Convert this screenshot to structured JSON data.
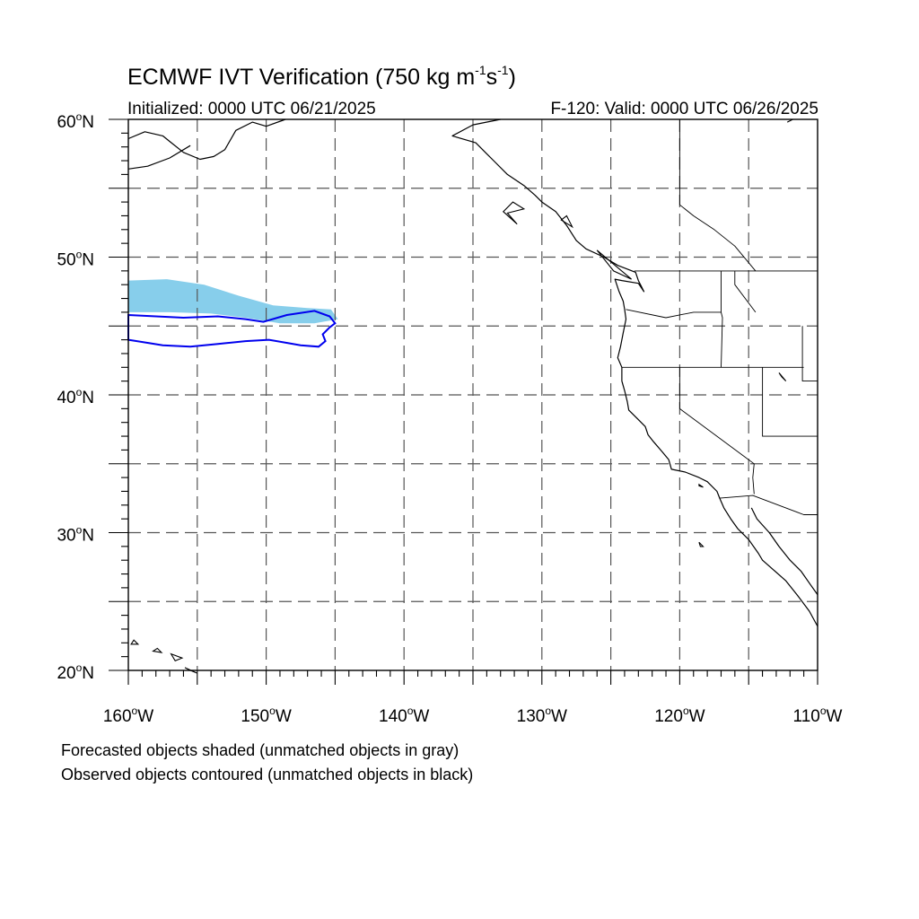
{
  "title": {
    "text": "ECMWF IVT Verification (750 kg m",
    "sup1": "-1",
    "mid": "s",
    "sup2": "-1",
    "close": ")"
  },
  "subtitle_left": "Initialized: 0000 UTC 06/21/2025",
  "subtitle_right": "F-120: Valid: 0000 UTC 06/26/2025",
  "footnotes": [
    "Forecasted objects shaded (unmatched objects in gray)",
    "Observed objects contoured (unmatched objects in black)"
  ],
  "map": {
    "lon_range": [
      -160,
      -110
    ],
    "lat_range": [
      20,
      60
    ],
    "grid_major_lon": [
      -155,
      -150,
      -145,
      -140,
      -135,
      -130,
      -125,
      -120,
      -115
    ],
    "grid_major_lat": [
      25,
      30,
      35,
      40,
      45,
      50,
      55
    ],
    "lon_labels": [
      {
        "lon": -160,
        "text": "160",
        "hemi": "W"
      },
      {
        "lon": -150,
        "text": "150",
        "hemi": "W"
      },
      {
        "lon": -140,
        "text": "140",
        "hemi": "W"
      },
      {
        "lon": -130,
        "text": "130",
        "hemi": "W"
      },
      {
        "lon": -120,
        "text": "120",
        "hemi": "W"
      },
      {
        "lon": -110,
        "text": "110",
        "hemi": "W"
      }
    ],
    "lat_labels": [
      {
        "lat": 60,
        "text": "60",
        "hemi": "N"
      },
      {
        "lat": 50,
        "text": "50",
        "hemi": "N"
      },
      {
        "lat": 40,
        "text": "40",
        "hemi": "N"
      },
      {
        "lat": 30,
        "text": "30",
        "hemi": "N"
      },
      {
        "lat": 20,
        "text": "20",
        "hemi": "N"
      }
    ],
    "colors": {
      "forecast_fill": "#87ceeb",
      "observed_contour": "#0000ee",
      "grid": "#555555",
      "coast": "#000000"
    },
    "forecast_object": [
      [
        -160,
        48.3
      ],
      [
        -157.2,
        48.4
      ],
      [
        -154.5,
        48.0
      ],
      [
        -152.0,
        47.2
      ],
      [
        -149.5,
        46.5
      ],
      [
        -147.0,
        46.3
      ],
      [
        -145.3,
        46.2
      ],
      [
        -144.8,
        45.5
      ],
      [
        -146.5,
        45.2
      ],
      [
        -149.0,
        45.2
      ],
      [
        -151.5,
        45.6
      ],
      [
        -154.0,
        45.9
      ],
      [
        -157.0,
        46.0
      ],
      [
        -160,
        46.0
      ]
    ],
    "observed_object": [
      [
        -160,
        45.8
      ],
      [
        -158.0,
        45.7
      ],
      [
        -156.0,
        45.6
      ],
      [
        -153.5,
        45.7
      ],
      [
        -151.5,
        45.5
      ],
      [
        -150.2,
        45.3
      ],
      [
        -148.5,
        45.8
      ],
      [
        -146.5,
        46.1
      ],
      [
        -145.4,
        45.7
      ],
      [
        -145.0,
        45.2
      ],
      [
        -145.4,
        44.9
      ],
      [
        -145.9,
        44.4
      ],
      [
        -145.7,
        43.9
      ],
      [
        -146.2,
        43.5
      ],
      [
        -147.5,
        43.6
      ],
      [
        -149.8,
        44.0
      ],
      [
        -151.5,
        43.9
      ],
      [
        -153.5,
        43.7
      ],
      [
        -155.5,
        43.5
      ],
      [
        -157.5,
        43.6
      ],
      [
        -160,
        44.0
      ]
    ],
    "coastline": [
      [
        -133.0,
        60.0
      ],
      [
        -135.0,
        59.6
      ],
      [
        -136.5,
        58.8
      ],
      [
        -134.8,
        58.3
      ],
      [
        -134.0,
        57.5
      ],
      [
        -133.5,
        57.0
      ],
      [
        -132.5,
        56.0
      ],
      [
        -131.3,
        55.2
      ],
      [
        -130.5,
        54.5
      ],
      [
        -130.0,
        54.0
      ],
      [
        -129.0,
        53.3
      ],
      [
        -128.2,
        52.3
      ],
      [
        -127.5,
        51.2
      ],
      [
        -126.8,
        50.6
      ],
      [
        -125.5,
        50.0
      ],
      [
        -124.5,
        49.4
      ],
      [
        -123.2,
        48.9
      ],
      [
        -123.0,
        48.3
      ],
      [
        -122.8,
        47.9
      ],
      [
        -122.6,
        47.5
      ],
      [
        -123.0,
        48.1
      ],
      [
        -124.2,
        48.3
      ],
      [
        -124.7,
        48.4
      ],
      [
        -124.4,
        47.5
      ],
      [
        -124.1,
        46.8
      ],
      [
        -124.0,
        46.2
      ],
      [
        -123.9,
        45.5
      ],
      [
        -124.1,
        44.5
      ],
      [
        -124.3,
        43.5
      ],
      [
        -124.5,
        42.7
      ],
      [
        -124.2,
        42.0
      ],
      [
        -124.2,
        41.0
      ],
      [
        -124.0,
        40.3
      ],
      [
        -123.8,
        39.5
      ],
      [
        -123.7,
        38.9
      ],
      [
        -123.0,
        38.2
      ],
      [
        -122.5,
        37.7
      ],
      [
        -122.3,
        37.1
      ],
      [
        -121.9,
        36.6
      ],
      [
        -121.3,
        35.9
      ],
      [
        -120.8,
        35.3
      ],
      [
        -120.6,
        34.6
      ],
      [
        -119.6,
        34.4
      ],
      [
        -118.6,
        34.0
      ],
      [
        -118.0,
        33.7
      ],
      [
        -117.3,
        33.0
      ],
      [
        -117.1,
        32.5
      ],
      [
        -116.8,
        31.8
      ],
      [
        -116.3,
        31.0
      ],
      [
        -115.8,
        30.3
      ],
      [
        -115.0,
        29.5
      ],
      [
        -114.3,
        28.5
      ],
      [
        -114.0,
        28.0
      ],
      [
        -113.2,
        27.3
      ],
      [
        -112.3,
        26.5
      ],
      [
        -111.5,
        25.5
      ],
      [
        -110.6,
        24.3
      ],
      [
        -110.0,
        23.2
      ]
    ],
    "gulf_coast": [
      [
        -114.8,
        31.8
      ],
      [
        -114.4,
        31.0
      ],
      [
        -113.5,
        30.0
      ],
      [
        -112.8,
        29.0
      ],
      [
        -112.0,
        28.0
      ],
      [
        -111.2,
        27.2
      ],
      [
        -110.5,
        26.2
      ],
      [
        -110.0,
        25.5
      ]
    ],
    "upper_coast": [
      [
        -112.2,
        59.8
      ],
      [
        -111.8,
        60.0
      ]
    ],
    "islands": [
      [
        [
          -155.9,
          20.2
        ],
        [
          -155.0,
          19.8
        ],
        [
          -155.5,
          20.0
        ],
        [
          -155.9,
          20.2
        ]
      ],
      [
        [
          -159.6,
          22.2
        ],
        [
          -159.3,
          21.9
        ],
        [
          -159.8,
          21.9
        ],
        [
          -159.6,
          22.2
        ]
      ],
      [
        [
          -157.9,
          21.6
        ],
        [
          -157.6,
          21.3
        ],
        [
          -158.2,
          21.4
        ],
        [
          -157.9,
          21.6
        ]
      ],
      [
        [
          -156.9,
          21.2
        ],
        [
          -156.1,
          20.9
        ],
        [
          -156.6,
          20.7
        ],
        [
          -156.9,
          21.2
        ]
      ],
      [
        [
          -128.2,
          53.0
        ],
        [
          -127.8,
          52.2
        ],
        [
          -128.6,
          52.7
        ],
        [
          -128.2,
          53.0
        ]
      ],
      [
        [
          -132.1,
          54.0
        ],
        [
          -131.3,
          53.5
        ],
        [
          -132.5,
          53.2
        ],
        [
          -131.8,
          52.4
        ],
        [
          -132.8,
          53.3
        ],
        [
          -132.1,
          54.0
        ]
      ],
      [
        [
          -126.0,
          50.5
        ],
        [
          -123.5,
          48.4
        ],
        [
          -124.8,
          49.0
        ],
        [
          -126.0,
          50.5
        ]
      ],
      [
        [
          -118.6,
          33.5
        ],
        [
          -118.3,
          33.3
        ],
        [
          -118.6,
          33.4
        ],
        [
          -118.6,
          33.5
        ]
      ],
      [
        [
          -118.6,
          29.3
        ],
        [
          -118.3,
          29.0
        ],
        [
          -118.5,
          29.0
        ],
        [
          -118.6,
          29.3
        ]
      ],
      [
        [
          -112.8,
          41.6
        ],
        [
          -112.3,
          41.0
        ],
        [
          -112.6,
          41.3
        ],
        [
          -112.8,
          41.6
        ]
      ]
    ],
    "alaska_coast": [
      [
        -160,
        58.6
      ],
      [
        -158.8,
        59.1
      ],
      [
        -157.5,
        58.8
      ],
      [
        -157.0,
        58.4
      ],
      [
        -156.0,
        57.6
      ],
      [
        -154.8,
        57.1
      ],
      [
        -153.8,
        57.3
      ],
      [
        -153.0,
        57.8
      ],
      [
        -152.2,
        59.2
      ],
      [
        -151.0,
        59.8
      ],
      [
        -150.0,
        59.5
      ],
      [
        -148.6,
        60.0
      ]
    ],
    "alaska_lower": [
      [
        -160,
        56.4
      ],
      [
        -158.6,
        56.6
      ],
      [
        -157.0,
        57.2
      ],
      [
        -155.5,
        58.1
      ]
    ],
    "state_lines": [
      [
        [
          -123.3,
          49.0
        ],
        [
          -110,
          49.0
        ]
      ],
      [
        [
          -124.2,
          42.0
        ],
        [
          -111,
          42.0
        ]
      ],
      [
        [
          -120.0,
          42.0
        ],
        [
          -120.0,
          39.0
        ],
        [
          -114.6,
          35.0
        ]
      ],
      [
        [
          -117.0,
          49.0
        ],
        [
          -117.0,
          46.0
        ],
        [
          -116.9,
          45.6
        ],
        [
          -117.0,
          42.0
        ]
      ],
      [
        [
          -123.9,
          46.2
        ],
        [
          -121.0,
          45.6
        ],
        [
          -119.0,
          46.0
        ],
        [
          -117.0,
          46.0
        ]
      ],
      [
        [
          -114.0,
          42.0
        ],
        [
          -114.0,
          37.0
        ],
        [
          -110,
          37.0
        ]
      ],
      [
        [
          -111.1,
          45.0
        ],
        [
          -111.1,
          41.0
        ],
        [
          -110,
          41.0
        ]
      ],
      [
        [
          -117.1,
          32.5
        ],
        [
          -114.7,
          32.7
        ],
        [
          -111.0,
          31.3
        ],
        [
          -110,
          31.3
        ]
      ],
      [
        [
          -116.0,
          49.0
        ],
        [
          -116.0,
          48.0
        ],
        [
          -114.5,
          46.0
        ]
      ],
      [
        [
          -114.6,
          35.0
        ],
        [
          -114.7,
          34.0
        ],
        [
          -114.6,
          32.8
        ]
      ]
    ],
    "canada_lines": [
      [
        [
          -120.0,
          60.0
        ],
        [
          -120.0,
          53.8
        ],
        [
          -119.0,
          53.0
        ],
        [
          -117.5,
          52.0
        ],
        [
          -116.0,
          50.8
        ],
        [
          -114.5,
          49.0
        ]
      ]
    ]
  }
}
